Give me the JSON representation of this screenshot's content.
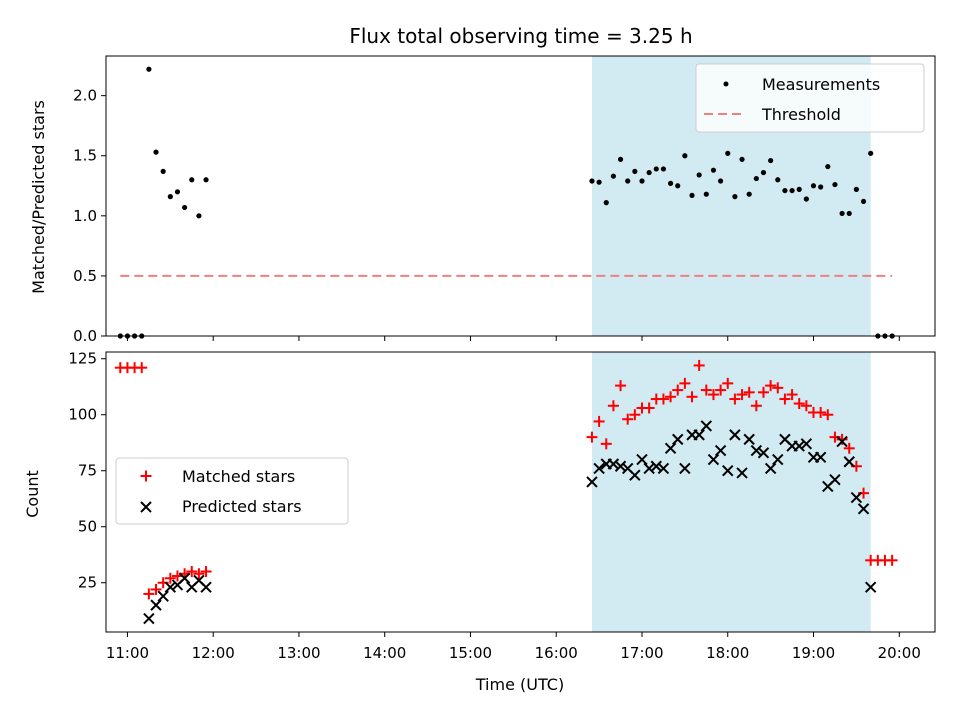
{
  "title": "Flux total observing time = 3.25 h",
  "colors": {
    "shade": "#add8e6",
    "threshold": "#f08080",
    "matched": "#ff0000",
    "predicted": "#000000",
    "measurements": "#000000"
  },
  "chart_data": [
    {
      "type": "scatter",
      "ylabel": "Matched/Predicted stars",
      "xlim": [
        "10:45",
        "20:25"
      ],
      "ylim": [
        0,
        2.33
      ],
      "yticks": [
        "0.0",
        "0.5",
        "1.0",
        "1.5",
        "2.0"
      ],
      "shaded_region": {
        "start": "16:25",
        "end": "19:40"
      },
      "legend": {
        "placement": "top-right"
      },
      "series": [
        {
          "name": "Measurements",
          "marker": "dot",
          "points": [
            [
              "10:55",
              0.0
            ],
            [
              "11:00",
              0.0
            ],
            [
              "11:05",
              0.0
            ],
            [
              "11:10",
              0.0
            ],
            [
              "11:15",
              2.22
            ],
            [
              "11:20",
              1.53
            ],
            [
              "11:25",
              1.37
            ],
            [
              "11:30",
              1.16
            ],
            [
              "11:35",
              1.2
            ],
            [
              "11:40",
              1.07
            ],
            [
              "11:45",
              1.3
            ],
            [
              "11:50",
              1.0
            ],
            [
              "11:55",
              1.3
            ],
            [
              "16:25",
              1.29
            ],
            [
              "16:30",
              1.28
            ],
            [
              "16:35",
              1.11
            ],
            [
              "16:40",
              1.33
            ],
            [
              "16:45",
              1.47
            ],
            [
              "16:50",
              1.29
            ],
            [
              "16:55",
              1.37
            ],
            [
              "17:00",
              1.29
            ],
            [
              "17:05",
              1.36
            ],
            [
              "17:10",
              1.39
            ],
            [
              "17:15",
              1.39
            ],
            [
              "17:20",
              1.27
            ],
            [
              "17:25",
              1.25
            ],
            [
              "17:30",
              1.5
            ],
            [
              "17:35",
              1.17
            ],
            [
              "17:40",
              1.34
            ],
            [
              "17:45",
              1.18
            ],
            [
              "17:50",
              1.38
            ],
            [
              "17:55",
              1.29
            ],
            [
              "18:00",
              1.52
            ],
            [
              "18:05",
              1.16
            ],
            [
              "18:10",
              1.47
            ],
            [
              "18:15",
              1.18
            ],
            [
              "18:20",
              1.31
            ],
            [
              "18:25",
              1.36
            ],
            [
              "18:30",
              1.46
            ],
            [
              "18:35",
              1.3
            ],
            [
              "18:40",
              1.21
            ],
            [
              "18:45",
              1.21
            ],
            [
              "18:50",
              1.22
            ],
            [
              "18:55",
              1.14
            ],
            [
              "19:00",
              1.25
            ],
            [
              "19:05",
              1.24
            ],
            [
              "19:10",
              1.41
            ],
            [
              "19:15",
              1.26
            ],
            [
              "19:20",
              1.02
            ],
            [
              "19:25",
              1.02
            ],
            [
              "19:30",
              1.22
            ],
            [
              "19:35",
              1.12
            ],
            [
              "19:40",
              1.52
            ],
            [
              "19:45",
              0.0
            ],
            [
              "19:50",
              0.0
            ],
            [
              "19:55",
              0.0
            ]
          ]
        },
        {
          "name": "Threshold",
          "marker": "dashed-line",
          "points": [
            [
              "10:55",
              0.5
            ],
            [
              "19:55",
              0.5
            ]
          ]
        }
      ]
    },
    {
      "type": "scatter",
      "xlabel": "Time (UTC)",
      "ylabel": "Count",
      "xlim": [
        "10:45",
        "20:25"
      ],
      "ylim": [
        3,
        128
      ],
      "yticks": [
        "25",
        "50",
        "75",
        "100",
        "125"
      ],
      "xticks": [
        "11:00",
        "12:00",
        "13:00",
        "14:00",
        "15:00",
        "16:00",
        "17:00",
        "18:00",
        "19:00",
        "20:00"
      ],
      "shaded_region": {
        "start": "16:25",
        "end": "19:40"
      },
      "legend": {
        "placement": "center-left"
      },
      "series": [
        {
          "name": "Matched stars",
          "marker": "plus",
          "points": [
            [
              "10:55",
              121
            ],
            [
              "11:00",
              121
            ],
            [
              "11:05",
              121
            ],
            [
              "11:10",
              121
            ],
            [
              "11:15",
              20
            ],
            [
              "11:20",
              22
            ],
            [
              "11:25",
              25
            ],
            [
              "11:30",
              27
            ],
            [
              "11:35",
              28
            ],
            [
              "11:40",
              29
            ],
            [
              "11:45",
              30
            ],
            [
              "11:50",
              29
            ],
            [
              "11:55",
              30
            ],
            [
              "16:25",
              90
            ],
            [
              "16:30",
              97
            ],
            [
              "16:35",
              87
            ],
            [
              "16:40",
              104
            ],
            [
              "16:45",
              113
            ],
            [
              "16:50",
              98
            ],
            [
              "16:55",
              100
            ],
            [
              "17:00",
              103
            ],
            [
              "17:05",
              103
            ],
            [
              "17:10",
              107
            ],
            [
              "17:15",
              107
            ],
            [
              "17:20",
              108
            ],
            [
              "17:25",
              111
            ],
            [
              "17:30",
              114
            ],
            [
              "17:35",
              108
            ],
            [
              "17:40",
              122
            ],
            [
              "17:45",
              111
            ],
            [
              "17:50",
              109
            ],
            [
              "17:55",
              111
            ],
            [
              "18:00",
              114
            ],
            [
              "18:05",
              107
            ],
            [
              "18:10",
              109
            ],
            [
              "18:15",
              110
            ],
            [
              "18:20",
              104
            ],
            [
              "18:25",
              110
            ],
            [
              "18:30",
              113
            ],
            [
              "18:35",
              112
            ],
            [
              "18:40",
              107
            ],
            [
              "18:45",
              109
            ],
            [
              "18:50",
              105
            ],
            [
              "18:55",
              104
            ],
            [
              "19:00",
              101
            ],
            [
              "19:05",
              101
            ],
            [
              "19:10",
              100
            ],
            [
              "19:15",
              90
            ],
            [
              "19:20",
              89
            ],
            [
              "19:25",
              85
            ],
            [
              "19:30",
              77
            ],
            [
              "19:35",
              65
            ],
            [
              "19:40",
              35
            ],
            [
              "19:45",
              35
            ],
            [
              "19:50",
              35
            ],
            [
              "19:55",
              35
            ]
          ]
        },
        {
          "name": "Predicted stars",
          "marker": "x",
          "points": [
            [
              "11:15",
              9
            ],
            [
              "11:20",
              15
            ],
            [
              "11:25",
              19
            ],
            [
              "11:30",
              23
            ],
            [
              "11:35",
              24
            ],
            [
              "11:40",
              27
            ],
            [
              "11:45",
              23
            ],
            [
              "11:50",
              26
            ],
            [
              "11:55",
              23
            ],
            [
              "16:25",
              70
            ],
            [
              "16:30",
              76
            ],
            [
              "16:35",
              78
            ],
            [
              "16:40",
              78
            ],
            [
              "16:45",
              77
            ],
            [
              "16:50",
              76
            ],
            [
              "16:55",
              73
            ],
            [
              "17:00",
              80
            ],
            [
              "17:05",
              76
            ],
            [
              "17:10",
              77
            ],
            [
              "17:15",
              76
            ],
            [
              "17:20",
              85
            ],
            [
              "17:25",
              89
            ],
            [
              "17:30",
              76
            ],
            [
              "17:35",
              91
            ],
            [
              "17:40",
              91
            ],
            [
              "17:45",
              95
            ],
            [
              "17:50",
              80
            ],
            [
              "17:55",
              84
            ],
            [
              "18:00",
              75
            ],
            [
              "18:05",
              91
            ],
            [
              "18:10",
              74
            ],
            [
              "18:15",
              89
            ],
            [
              "18:20",
              84
            ],
            [
              "18:25",
              83
            ],
            [
              "18:30",
              76
            ],
            [
              "18:35",
              80
            ],
            [
              "18:40",
              89
            ],
            [
              "18:45",
              86
            ],
            [
              "18:50",
              86
            ],
            [
              "18:55",
              87
            ],
            [
              "19:00",
              81
            ],
            [
              "19:05",
              81
            ],
            [
              "19:10",
              68
            ],
            [
              "19:15",
              71
            ],
            [
              "19:20",
              88
            ],
            [
              "19:25",
              79
            ],
            [
              "19:30",
              63
            ],
            [
              "19:35",
              58
            ],
            [
              "19:40",
              23
            ]
          ]
        }
      ]
    }
  ]
}
